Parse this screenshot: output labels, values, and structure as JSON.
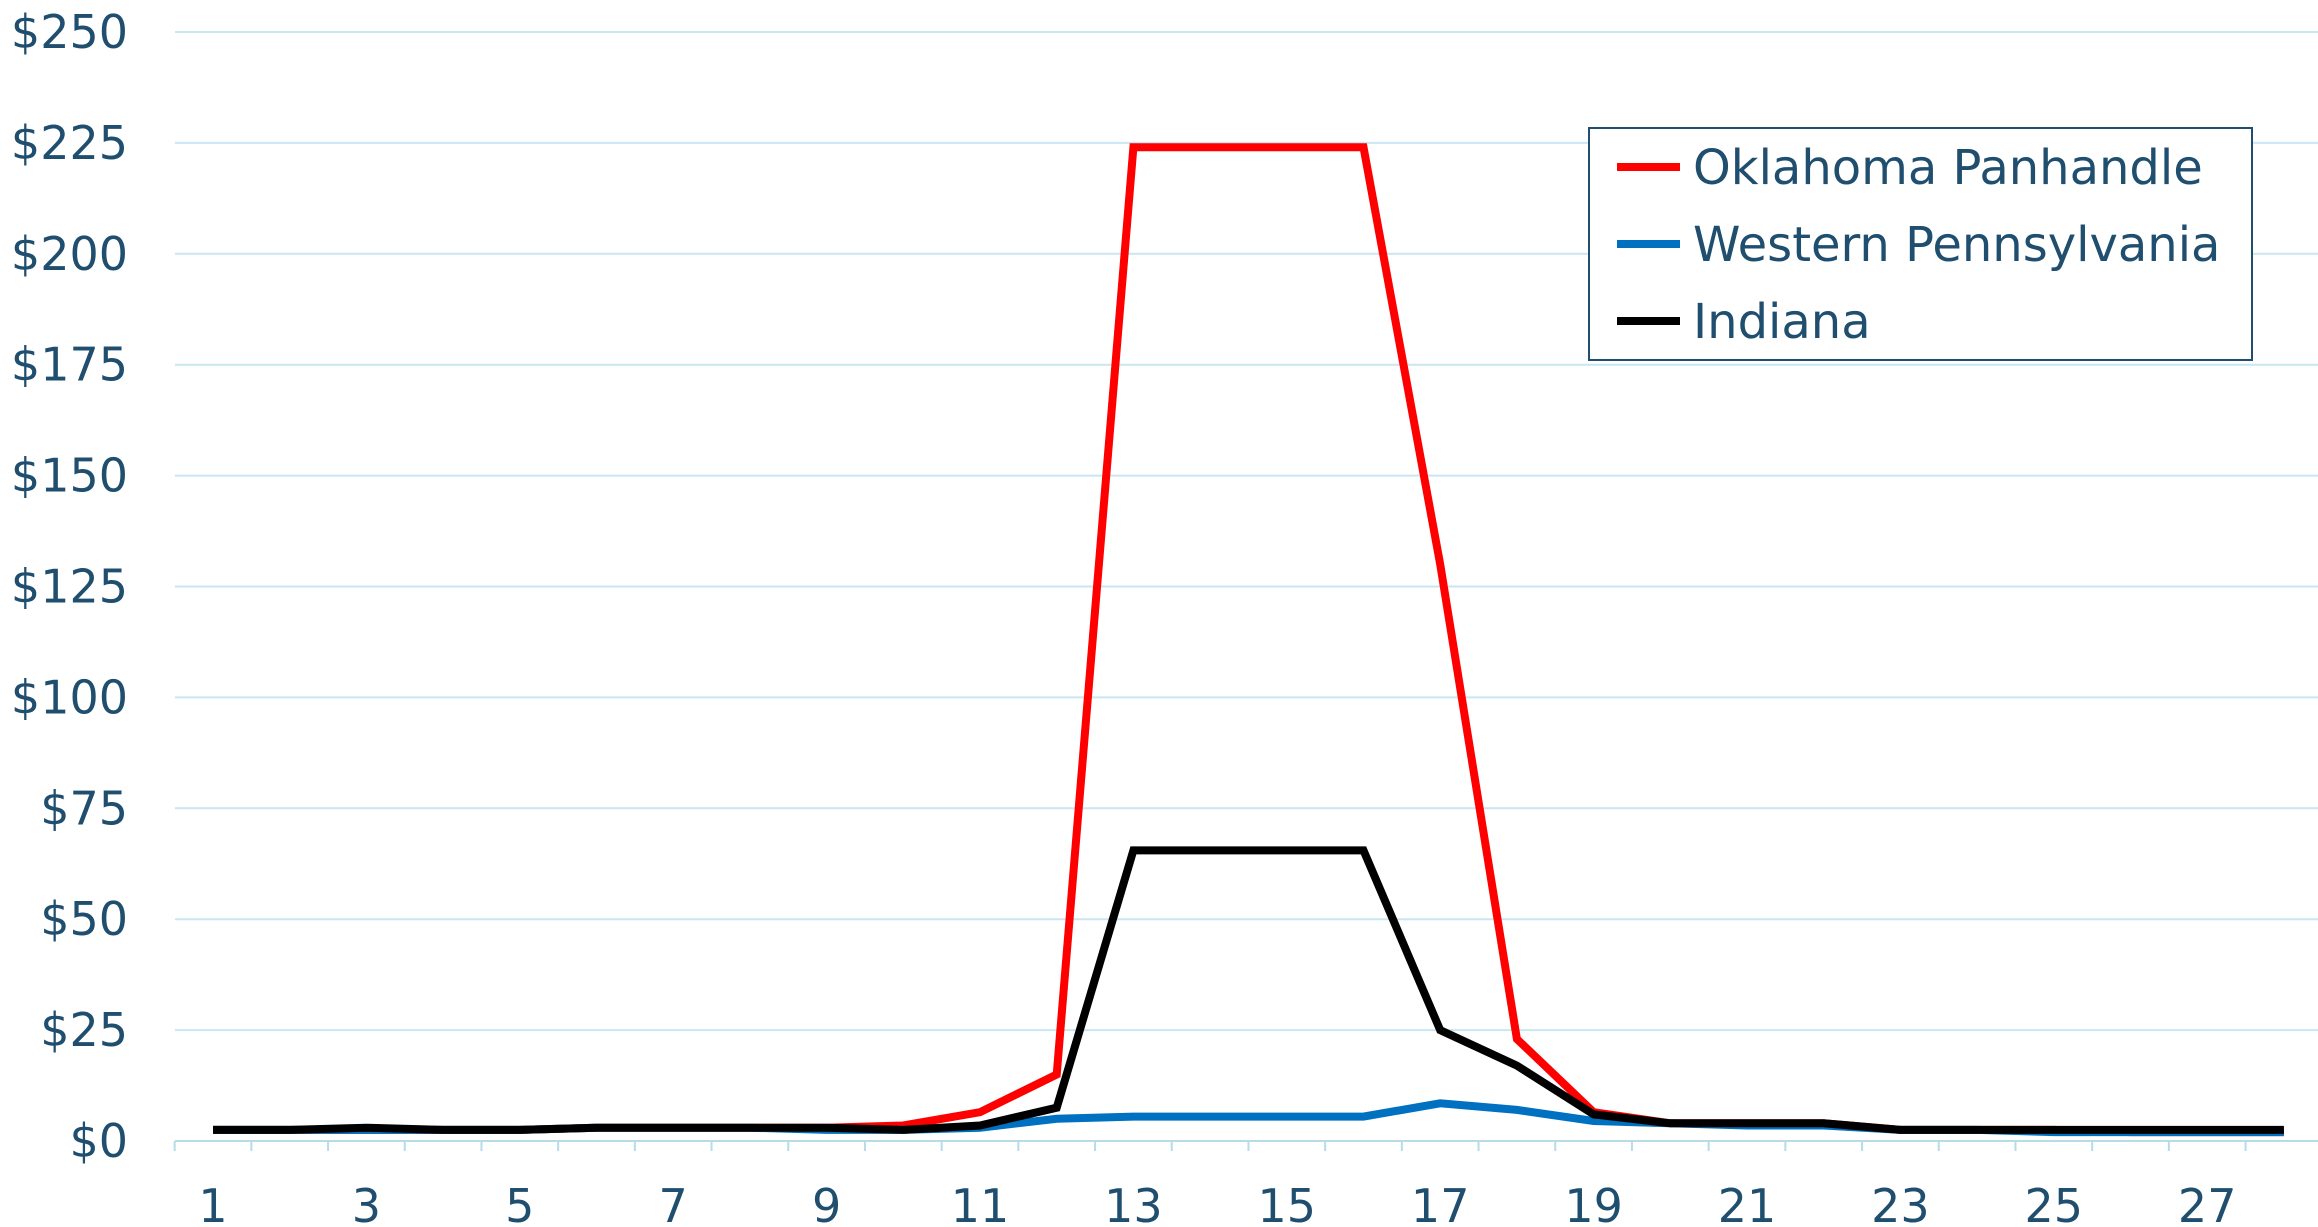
{
  "chart_data": {
    "type": "line",
    "x": [
      1,
      2,
      3,
      4,
      5,
      6,
      7,
      8,
      9,
      10,
      11,
      12,
      13,
      14,
      15,
      16,
      17,
      18,
      19,
      20,
      21,
      22,
      23,
      24,
      25,
      26,
      27,
      28
    ],
    "x_tick_labels": [
      "1",
      "3",
      "5",
      "7",
      "9",
      "11",
      "13",
      "15",
      "17",
      "19",
      "21",
      "23",
      "25",
      "27"
    ],
    "y_tick_labels": [
      "$0",
      "$25",
      "$50",
      "$75",
      "$100",
      "$125",
      "$150",
      "$175",
      "$200",
      "$225",
      "$250"
    ],
    "ylim": [
      0,
      250
    ],
    "grid": true,
    "legend_position": "top-right",
    "series": [
      {
        "name": "Oklahoma Panhandle",
        "color": "#ff0000",
        "values": [
          2.5,
          2.5,
          2.5,
          2.5,
          2.5,
          3,
          3,
          3,
          3,
          3.5,
          6.5,
          15,
          224,
          224,
          224,
          224,
          130,
          23,
          6.5,
          4,
          4,
          4,
          2.5,
          2.5,
          2.5,
          2,
          2,
          2
        ]
      },
      {
        "name": "Western Pennsylvania",
        "color": "#0070c0",
        "values": [
          2.5,
          2.5,
          2.5,
          2.5,
          2.5,
          3,
          3,
          3,
          2.5,
          2.5,
          3,
          5,
          5.5,
          5.5,
          5.5,
          5.5,
          8.5,
          7,
          4.5,
          4,
          3.5,
          3.5,
          2.5,
          2.5,
          2,
          2,
          2,
          2
        ]
      },
      {
        "name": "Indiana",
        "color": "#000000",
        "values": [
          2.5,
          2.5,
          3,
          2.5,
          2.5,
          3,
          3,
          3,
          3,
          2.5,
          3.5,
          7.5,
          65.5,
          65.5,
          65.5,
          65.5,
          25,
          17,
          6,
          4,
          4,
          4,
          2.5,
          2.5,
          2.5,
          2.5,
          2.5,
          2.5
        ]
      }
    ]
  }
}
